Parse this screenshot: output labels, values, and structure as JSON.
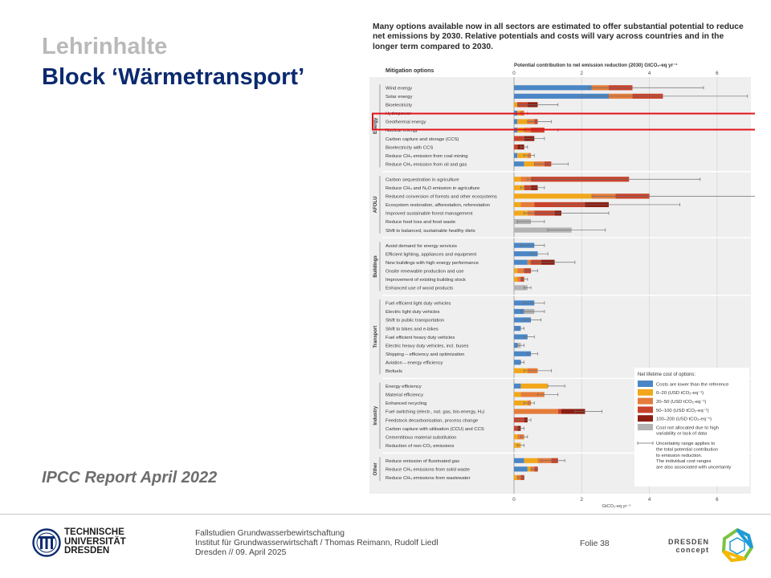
{
  "slide": {
    "title_line1": "Lehrinhalte",
    "title_line2": "Block ‘Wärmetransport’",
    "source_note": "IPCC Report April 2022",
    "figure_caption": "Many options available now in all sectors are estimated to offer substantial potential to reduce net emissions by 2030. Relative potentials and costs will vary across countries and in the longer term compared to 2030."
  },
  "footer": {
    "university_lines": [
      "TECHNISCHE",
      "UNIVERSITÄT",
      "DRESDEN"
    ],
    "course": "Fallstudien Grundwasserbewirtschaftung",
    "institute": "Institut für Grundwasserwirtschaft / Thomas Reimann, Rudolf Liedl",
    "date": "Dresden // 09. April 2025",
    "slide_label": "Folie 38",
    "partner_lines": [
      "DRESDEN",
      "concept"
    ]
  },
  "colors": {
    "title_grey": "#b9b9b9",
    "title_blue": "#0b2a6f",
    "highlight_box": "#e0141b",
    "cost_lower": "#4a86c5",
    "cost_0_20": "#f2a71b",
    "cost_20_50": "#e57c3a",
    "cost_50_100": "#c8432b",
    "cost_100_200": "#8c1f12",
    "cost_na": "#b3b3b3"
  },
  "chart_data": {
    "type": "bar",
    "stacked": true,
    "orientation": "horizontal",
    "title": "Potential contribution to net emission reduction (2030)",
    "title_unit": "GtCO₂-eq yr⁻¹",
    "category_header": "Mitigation options",
    "xlabel": "GtCO₂-eq yr⁻¹",
    "xlim": [
      0,
      7
    ],
    "xticks": [
      0,
      2,
      4,
      6
    ],
    "grid": true,
    "legend_position": "bottom-right",
    "legend_title": "Net lifetime cost of options:",
    "legend": [
      {
        "key": "lower",
        "label": "Costs are lower than the reference"
      },
      {
        "key": "c0_20",
        "label": "0–20 (USD tCO₂-eq⁻¹)"
      },
      {
        "key": "c20_50",
        "label": "20–50 (USD tCO₂-eq⁻¹)"
      },
      {
        "key": "c50_100",
        "label": "50–100 (USD tCO₂-eq⁻¹)"
      },
      {
        "key": "c100_200",
        "label": "100–200 (USD tCO₂-eq⁻¹)"
      },
      {
        "key": "na",
        "label": "Cost not allocated due to high variability or lack of data"
      }
    ],
    "uncertainty_note": "Uncertainty range applies to the total potential contribution to emission reduction. The individual cost ranges are also associated with uncertainty",
    "highlight_option": "Geothermal energy",
    "sectors": [
      {
        "name": "Energy",
        "options": [
          {
            "label": "Wind energy",
            "segments": [
              2.3,
              0,
              0.5,
              0.7,
              0,
              0
            ],
            "range": [
              2.2,
              5.6
            ]
          },
          {
            "label": "Solar energy",
            "segments": [
              2.8,
              0,
              0.7,
              0.9,
              0,
              0
            ],
            "range": [
              2.0,
              6.9
            ]
          },
          {
            "label": "Bioelectricity",
            "segments": [
              0,
              0.1,
              0,
              0.3,
              0.3,
              0
            ],
            "range": [
              0.1,
              1.3
            ]
          },
          {
            "label": "Hydropower",
            "segments": [
              0.1,
              0.1,
              0.1,
              0,
              0,
              0
            ],
            "range": [
              0.2,
              0.4
            ]
          },
          {
            "label": "Geothermal energy",
            "segments": [
              0.1,
              0.3,
              0.2,
              0.1,
              0,
              0
            ],
            "range": [
              0.4,
              1.1
            ]
          },
          {
            "label": "Nuclear energy",
            "segments": [
              0.1,
              0.2,
              0.2,
              0.4,
              0,
              0
            ],
            "range": [
              0.3,
              1.3
            ]
          },
          {
            "label": "Carbon capture and storage (CCS)",
            "segments": [
              0,
              0,
              0,
              0.3,
              0.3,
              0
            ],
            "range": [
              0.3,
              0.9
            ]
          },
          {
            "label": "Bioelectricity with CCS",
            "segments": [
              0,
              0,
              0,
              0.1,
              0.2,
              0
            ],
            "range": [
              0.2,
              0.4
            ]
          },
          {
            "label": "Reduce CH₄ emission from coal mining",
            "segments": [
              0.1,
              0.3,
              0.1,
              0,
              0,
              0
            ],
            "range": [
              0.3,
              0.6
            ]
          },
          {
            "label": "Reduce CH₄ emission from oil and gas",
            "segments": [
              0.3,
              0.3,
              0.3,
              0.2,
              0,
              0
            ],
            "range": [
              0.6,
              1.6
            ]
          }
        ]
      },
      {
        "name": "AFOLU",
        "options": [
          {
            "label": "Carbon sequestration in agriculture",
            "segments": [
              0,
              0.2,
              0.3,
              2.9,
              0,
              0
            ],
            "range": [
              0.4,
              5.5
            ]
          },
          {
            "label": "Reduce CH₄ and N₂O emission in agriculture",
            "segments": [
              0,
              0.3,
              0,
              0.2,
              0.2,
              0
            ],
            "range": [
              0.2,
              0.9
            ]
          },
          {
            "label": "Reduced conversion of forests and other ecosystems",
            "segments": [
              0,
              2.3,
              0.7,
              1.0,
              0,
              0
            ],
            "range": [
              2.3,
              7.3
            ]
          },
          {
            "label": "Ecosystem restoration, afforestation, reforestation",
            "segments": [
              0,
              0.2,
              0.4,
              1.5,
              0.7,
              0
            ],
            "range": [
              1.2,
              4.9
            ]
          },
          {
            "label": "Improved sustainable forest management",
            "segments": [
              0,
              0.4,
              0.2,
              0.6,
              0.2,
              0
            ],
            "range": [
              0.3,
              2.8
            ]
          },
          {
            "label": "Reduce food loss and food waste",
            "segments": [
              0,
              0,
              0,
              0,
              0,
              0.5
            ],
            "range": [
              0.1,
              0.9
            ]
          },
          {
            "label": "Shift to balanced, sustainable healthy diets",
            "segments": [
              0,
              0,
              0,
              0,
              0,
              1.7
            ],
            "range": [
              1.0,
              2.7
            ]
          }
        ]
      },
      {
        "name": "Buildings",
        "options": [
          {
            "label": "Avoid demand for energy services",
            "segments": [
              0.6,
              0,
              0,
              0,
              0,
              0
            ],
            "range": [
              0.2,
              0.9
            ]
          },
          {
            "label": "Efficient lighting, appliances and equipment",
            "segments": [
              0.7,
              0,
              0,
              0,
              0,
              0
            ],
            "range": [
              0.5,
              1.0
            ]
          },
          {
            "label": "New buildings with high energy performance",
            "segments": [
              0.4,
              0,
              0.1,
              0.3,
              0.4,
              0
            ],
            "range": [
              0.5,
              1.8
            ]
          },
          {
            "label": "Onsite renewable production and use",
            "segments": [
              0,
              0.1,
              0.2,
              0.2,
              0,
              0
            ],
            "range": [
              0.3,
              0.7
            ]
          },
          {
            "label": "Improvement of existing building stock",
            "segments": [
              0,
              0.1,
              0.1,
              0.1,
              0,
              0
            ],
            "range": [
              0.2,
              0.4
            ]
          },
          {
            "label": "Enhanced use of wood products",
            "segments": [
              0,
              0,
              0,
              0,
              0,
              0.4
            ],
            "range": [
              0.3,
              0.5
            ]
          }
        ]
      },
      {
        "name": "Transport",
        "options": [
          {
            "label": "Fuel efficient light duty vehicles",
            "segments": [
              0.6,
              0,
              0,
              0,
              0,
              0
            ],
            "range": [
              0.3,
              0.9
            ]
          },
          {
            "label": "Electric light duty vehicles",
            "segments": [
              0.3,
              0,
              0,
              0,
              0,
              0.3
            ],
            "range": [
              0.2,
              0.9
            ]
          },
          {
            "label": "Shift to public transportation",
            "segments": [
              0.5,
              0,
              0,
              0,
              0,
              0
            ],
            "range": [
              0.3,
              0.8
            ]
          },
          {
            "label": "Shift to bikes and e-bikes",
            "segments": [
              0.2,
              0,
              0,
              0,
              0,
              0
            ],
            "range": [
              0.1,
              0.3
            ]
          },
          {
            "label": "Fuel efficient heavy duty vehicles",
            "segments": [
              0.4,
              0,
              0,
              0,
              0,
              0
            ],
            "range": [
              0.3,
              0.6
            ]
          },
          {
            "label": "Electric heavy duty vehicles, incl. buses",
            "segments": [
              0.1,
              0,
              0,
              0,
              0,
              0.1
            ],
            "range": [
              0.1,
              0.3
            ]
          },
          {
            "label": "Shipping – efficiency and optimization",
            "segments": [
              0.5,
              0,
              0,
              0,
              0,
              0
            ],
            "range": [
              0.4,
              0.7
            ]
          },
          {
            "label": "Aviation – energy efficiency",
            "segments": [
              0.2,
              0,
              0,
              0,
              0,
              0
            ],
            "range": [
              0.2,
              0.3
            ]
          },
          {
            "label": "Biofuels",
            "segments": [
              0,
              0.4,
              0.3,
              0,
              0,
              0
            ],
            "range": [
              0.3,
              1.1
            ]
          }
        ]
      },
      {
        "name": "Industry",
        "options": [
          {
            "label": "Energy efficiency",
            "segments": [
              0.2,
              0.8,
              0,
              0,
              0,
              0
            ],
            "range": [
              1.0,
              1.5
            ]
          },
          {
            "label": "Material efficiency",
            "segments": [
              0,
              0.2,
              0.7,
              0,
              0,
              0
            ],
            "range": [
              0.7,
              1.3
            ]
          },
          {
            "label": "Enhanced recycling",
            "segments": [
              0,
              0.4,
              0.1,
              0,
              0,
              0
            ],
            "range": [
              0.3,
              0.6
            ]
          },
          {
            "label": "Fuel switching (electr., nat. gas, bio-energy, H₂)",
            "segments": [
              0,
              0,
              1.3,
              0.1,
              0.7,
              0
            ],
            "range": [
              1.8,
              2.6
            ]
          },
          {
            "label": "Feedstock decarbonisation, process change",
            "segments": [
              0,
              0,
              0,
              0.3,
              0.1,
              0
            ],
            "range": [
              0.1,
              0.5
            ]
          },
          {
            "label": "Carbon capture with utilisation (CCU) and CCS",
            "segments": [
              0,
              0,
              0,
              0.1,
              0.1,
              0
            ],
            "range": [
              0.1,
              0.3
            ]
          },
          {
            "label": "Cementitious material substitution",
            "segments": [
              0,
              0.1,
              0.2,
              0,
              0,
              0
            ],
            "range": [
              0.2,
              0.4
            ]
          },
          {
            "label": "Reduction of non-CO₂ emissions",
            "segments": [
              0,
              0.2,
              0,
              0,
              0,
              0
            ],
            "range": [
              0.1,
              0.3
            ]
          }
        ]
      },
      {
        "name": "Other",
        "options": [
          {
            "label": "Reduce emission of fluorinated gas",
            "segments": [
              0.3,
              0.4,
              0.4,
              0.2,
              0,
              0
            ],
            "range": [
              0.8,
              1.5
            ]
          },
          {
            "label": "Reduce CH₄ emissions from solid waste",
            "segments": [
              0.4,
              0.1,
              0.1,
              0.1,
              0,
              0
            ],
            "range": [
              0.5,
              0.7
            ]
          },
          {
            "label": "Reduce CH₄ emissions from wastewater",
            "segments": [
              0,
              0.1,
              0.1,
              0.1,
              0,
              0
            ],
            "range": [
              0.1,
              0.3
            ]
          }
        ]
      }
    ]
  }
}
